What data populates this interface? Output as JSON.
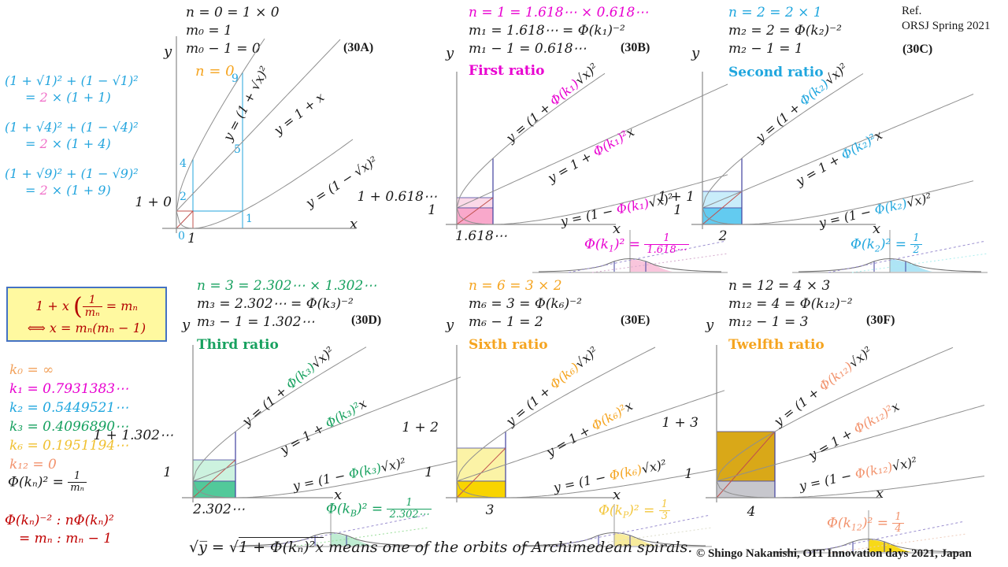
{
  "ref": {
    "line1": "Ref.",
    "line2": "ORSJ Spring  2021"
  },
  "copyright": "© Shingo  Nakanishi, OIT Innovation  days 2021, Japan",
  "footnote": {
    "pre": "√y̅  =  √",
    "rad": "1 + Φ(kₙ)²x",
    "post": " means  one  of the  orbits  of Archimedean   spirals."
  },
  "identities": {
    "color": "#23A5DE",
    "hl_color": "#F06EC8",
    "items": [
      {
        "top": "(1 + √1)² + (1 − √1)²",
        "l2pre": "= ",
        "l2hl": "2",
        "l2post": " × (1 + 1)"
      },
      {
        "top": "(1 + √4)² + (1 − √4)²",
        "l2pre": "= ",
        "l2hl": "2",
        "l2post": " × (1 + 4)"
      },
      {
        "top": "(1 + √9)² + (1 − √9)²",
        "l2pre": "= ",
        "l2hl": "2",
        "l2post": " × (1 + 9)"
      }
    ]
  },
  "box": {
    "color": "#B30000",
    "pre": "1 + x",
    "open": "(",
    "num": "1",
    "den": "mₙ",
    "eq": "= mₙ",
    "line2": "⟺ x = mₙ(mₙ − 1)"
  },
  "k_values": [
    {
      "text": "k₀ = ∞",
      "color": "#F2A25C"
    },
    {
      "text": "k₁ = 0.7931383⋯",
      "color": "#E800D0"
    },
    {
      "text": "k₂ = 0.5449521⋯",
      "color": "#1FA6DE"
    },
    {
      "text": "k₃ = 0.4096890⋯",
      "color": "#17A15F"
    },
    {
      "text": "k₆ = 0.1951194⋯",
      "color": "#F0C030"
    },
    {
      "text": "k₁₂ = 0",
      "color": "#F2926C"
    }
  ],
  "phi": {
    "pre": "Φ(kₙ)² =",
    "num": "1",
    "den": "mₙ"
  },
  "ratio_identity": {
    "line1": "Φ(kₙ)⁻² : nΦ(kₙ)²",
    "line2": "= mₙ : mₙ − 1"
  },
  "panels": [
    {
      "tag": "(30A)",
      "n_line": "n = 0 = 1 × 0",
      "n_color": "#1a1a1a",
      "m_line1": "m₀ = 1",
      "m_line2": "m₀ − 1 = 0",
      "ratio_label": "n = 0",
      "ratio_color": "#F5A41F",
      "accent": "#F5A41F",
      "curves": {
        "upper": {
          "pre": "y = (1 + ",
          "mid": "",
          "post": "√x)²"
        },
        "middle": {
          "pre": "y = 1 + x",
          "mid": "",
          "post": ""
        },
        "lower": {
          "pre": "y = (1 − ",
          "mid": "",
          "post": "√x)²"
        }
      },
      "y_top": "1 + 0",
      "x_val": "1",
      "axis_x": "x",
      "axis_y": "y",
      "ticks": {
        "t4": "4",
        "t2": "2",
        "t0": "0",
        "t9": "9",
        "t5": "5",
        "t1": "1"
      }
    },
    {
      "tag": "(30B)",
      "n_line": "n = 1 = 1.618⋯ × 0.618⋯",
      "n_color": "#E800D0",
      "m_line1": "m₁ = 1.618⋯ = Φ(k₁)⁻²",
      "m_line2": "m₁ − 1 = 0.618⋯",
      "ratio_label": "First ratio",
      "ratio_color": "#E800D0",
      "accent": "#E800D0",
      "curves": {
        "upper": {
          "pre": "y = (1 + ",
          "mid": "Φ(k₁)",
          "post": "√x)²"
        },
        "middle": {
          "pre": "y = 1 + ",
          "mid": "Φ(k₁)²",
          "post": "x"
        },
        "lower": {
          "pre": "y = (1 − ",
          "mid": "Φ(k₁)",
          "post": "√x)²"
        }
      },
      "y_top": "1 + 0.618⋯",
      "y_one": "1",
      "x_val": "1.618⋯",
      "square_upper": "#FBD9E8",
      "square_lower": "#F9A8CB",
      "inset": {
        "base": "Φ(k",
        "sub": "1",
        "close": ")² =",
        "num": "1",
        "den": "1.618⋯",
        "color": "#E800D0",
        "shade": "#F9C5DC"
      },
      "axis_x": "x",
      "axis_y": "y"
    },
    {
      "tag": "(30C)",
      "n_line": "n = 2 = 2 × 1",
      "n_color": "#1FA6DE",
      "m_line1": "m₂ = 2 = Φ(k₂)⁻²",
      "m_line2": "m₂ − 1 = 1",
      "ratio_label": "Second ratio",
      "ratio_color": "#1FA6DE",
      "accent": "#1FA6DE",
      "curves": {
        "upper": {
          "pre": "y = (1 + ",
          "mid": "Φ(k₂)",
          "post": "√x)²"
        },
        "middle": {
          "pre": "y = 1 + ",
          "mid": "Φ(k₂)²",
          "post": "x"
        },
        "lower": {
          "pre": "y = (1 − ",
          "mid": "Φ(k₂)",
          "post": "√x)²"
        }
      },
      "y_top": "1 + 1",
      "y_one": "1",
      "x_val": "2",
      "square_upper": "#C9EDFA",
      "square_lower": "#63CBF0",
      "inset": {
        "base": "Φ(k",
        "sub": "2",
        "close": ")² =",
        "num": "1",
        "den": "2",
        "color": "#1FA6DE",
        "shade": "#AEE4F5"
      },
      "axis_x": "x",
      "axis_y": "y"
    },
    {
      "tag": "(30D)",
      "n_line": "n = 3 = 2.302⋯ × 1.302⋯",
      "n_color": "#17A15F",
      "m_line1": "m₃ = 2.302⋯ = Φ(k₃)⁻²",
      "m_line2": "m₃ − 1 = 1.302⋯",
      "ratio_label": "Third ratio",
      "ratio_color": "#17A15F",
      "accent": "#17A15F",
      "curves": {
        "upper": {
          "pre": "y = (1 + ",
          "mid": "Φ(k₃)",
          "post": "√x)²"
        },
        "middle": {
          "pre": "y = 1 + ",
          "mid": "Φ(k₃)²",
          "post": "x"
        },
        "lower": {
          "pre": "y = (1 − ",
          "mid": "Φ(k₃)",
          "post": "√x)²"
        }
      },
      "y_top": "1 + 1.302⋯",
      "y_one": "1",
      "x_val": "2.302⋯",
      "square_upper": "#CCF2DF",
      "square_lower": "#52C99A",
      "inset": {
        "base": "Φ(k",
        "sub": "B",
        "close": ")² =",
        "num": "1",
        "den": "2.302⋯",
        "color": "#17A15F",
        "shade": "#BFEDD3"
      },
      "axis_x": "x",
      "axis_y": "y"
    },
    {
      "tag": "(30E)",
      "n_line": "n = 6 = 3 × 2",
      "n_color": "#F5A41F",
      "m_line1": "m₆ = 3 = Φ(k₆)⁻²",
      "m_line2": "m₆ − 1 = 2",
      "ratio_label": "Sixth ratio",
      "ratio_color": "#F5A41F",
      "accent": "#F5A41F",
      "curves": {
        "upper": {
          "pre": "y = (1 + ",
          "mid": "Φ(k₆)",
          "post": "√x)²"
        },
        "middle": {
          "pre": "y = 1 + ",
          "mid": "Φ(k₆)²",
          "post": "x"
        },
        "lower": {
          "pre": "y = (1 − ",
          "mid": "Φ(k₆)",
          "post": "√x)²"
        }
      },
      "y_top": "1 + 2",
      "y_one": "1",
      "x_val": "3",
      "square_upper": "#FBF3A6",
      "square_lower": "#F8D400",
      "inset": {
        "base": "Φ(k",
        "sub": "P",
        "close": ")² =",
        "num": "1",
        "den": "3",
        "color": "#F3C73F",
        "shade": "#F8EC9C"
      },
      "axis_x": "x",
      "axis_y": "y"
    },
    {
      "tag": "(30F)",
      "n_line": "n = 12 = 4 × 3",
      "n_color": "#1a1a1a",
      "m_line1": "m₁₂ = 4 = Φ(k₁₂)⁻²",
      "m_line2": "m₁₂ − 1 = 3",
      "ratio_label": "Twelfth ratio",
      "ratio_color": "#F5A41F",
      "accent": "#F2926C",
      "curves": {
        "upper": {
          "pre": "y = (1 + ",
          "mid": "Φ(k₁₂)",
          "post": "√x)²"
        },
        "middle": {
          "pre": "y = 1 + ",
          "mid": "Φ(k₁₂)²",
          "post": "x"
        },
        "lower": {
          "pre": "y = (1 − ",
          "mid": "Φ(k₁₂)",
          "post": "√x)²"
        }
      },
      "y_top": "1 + 3",
      "y_one": "1",
      "x_val": "4",
      "square_upper": "#D9A818",
      "square_lower": "#C7C7CD",
      "inset": {
        "base": "Φ(k",
        "sub": "12",
        "close": ")² =",
        "num": "1",
        "den": "4",
        "color": "#F2926C",
        "shade": "#F7D918"
      },
      "axis_x": "x",
      "axis_y": "y"
    }
  ]
}
